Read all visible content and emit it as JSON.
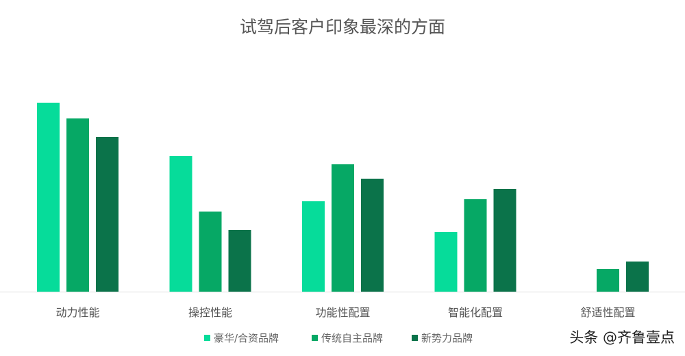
{
  "chart_data": {
    "type": "bar",
    "title": "试驾后客户印象最深的方面",
    "categories": [
      "动力性能",
      "操控性能",
      "功能性配置",
      "智能化配置",
      "舒适性配置"
    ],
    "series": [
      {
        "name": "豪华/合资品牌",
        "color": "#06dc9a",
        "values": [
          27.6,
          19.8,
          13.2,
          8.7,
          0
        ]
      },
      {
        "name": "传统自主品牌",
        "color": "#06a865",
        "values": [
          25.3,
          11.7,
          18.6,
          13.5,
          3.3
        ]
      },
      {
        "name": "新势力品牌",
        "color": "#0b734a",
        "values": [
          22.6,
          9.0,
          16.5,
          15.0,
          4.4
        ]
      }
    ],
    "xlabel": "",
    "ylabel": "",
    "ylim": [
      0,
      30
    ],
    "grid": false,
    "legend": "bottom"
  },
  "watermark": "头条 @齐鲁壹点"
}
